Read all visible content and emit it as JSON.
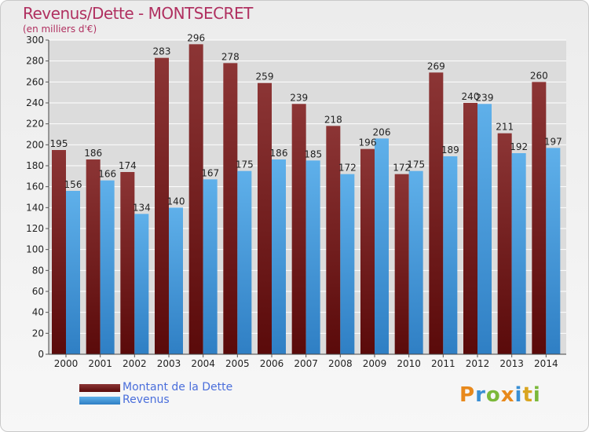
{
  "header": {
    "title": "Revenus/Dette - MONTSECRET",
    "subtitle": "(en milliers d'€)"
  },
  "logo": {
    "letters": [
      "P",
      "r",
      "o",
      "x",
      "i",
      "t",
      "i"
    ],
    "colors": [
      "#e8891c",
      "#3a8fd4",
      "#7bb83a",
      "#e8891c",
      "#3a8fd4",
      "#d9a520",
      "#7bb83a"
    ]
  },
  "colors": {
    "debt": "#6a1414",
    "debt_light": "#8c3535",
    "revenue": "#3d8fd6",
    "revenue_light": "#5fb0ea",
    "grid": "#ffffff",
    "axis_text": "#222222"
  },
  "chart_data": {
    "type": "bar",
    "title": "Revenus/Dette - MONTSECRET",
    "ylabel": "(en milliers d'€)",
    "ylim": [
      0,
      300
    ],
    "yticks": [
      0,
      20,
      40,
      60,
      80,
      100,
      120,
      140,
      160,
      180,
      200,
      220,
      240,
      260,
      280,
      300
    ],
    "grid": true,
    "legend_position": "bottom-left",
    "categories": [
      "2000",
      "2001",
      "2002",
      "2003",
      "2004",
      "2005",
      "2006",
      "2007",
      "2008",
      "2009",
      "2010",
      "2011",
      "2012",
      "2013",
      "2014"
    ],
    "series": [
      {
        "name": "Montant de la Dette",
        "values": [
          195,
          186,
          174,
          283,
          296,
          278,
          259,
          239,
          218,
          196,
          172,
          269,
          240,
          211,
          260
        ]
      },
      {
        "name": "Revenus",
        "values": [
          156,
          166,
          134,
          140,
          167,
          175,
          186,
          185,
          172,
          206,
          175,
          189,
          239,
          192,
          197
        ]
      }
    ]
  }
}
